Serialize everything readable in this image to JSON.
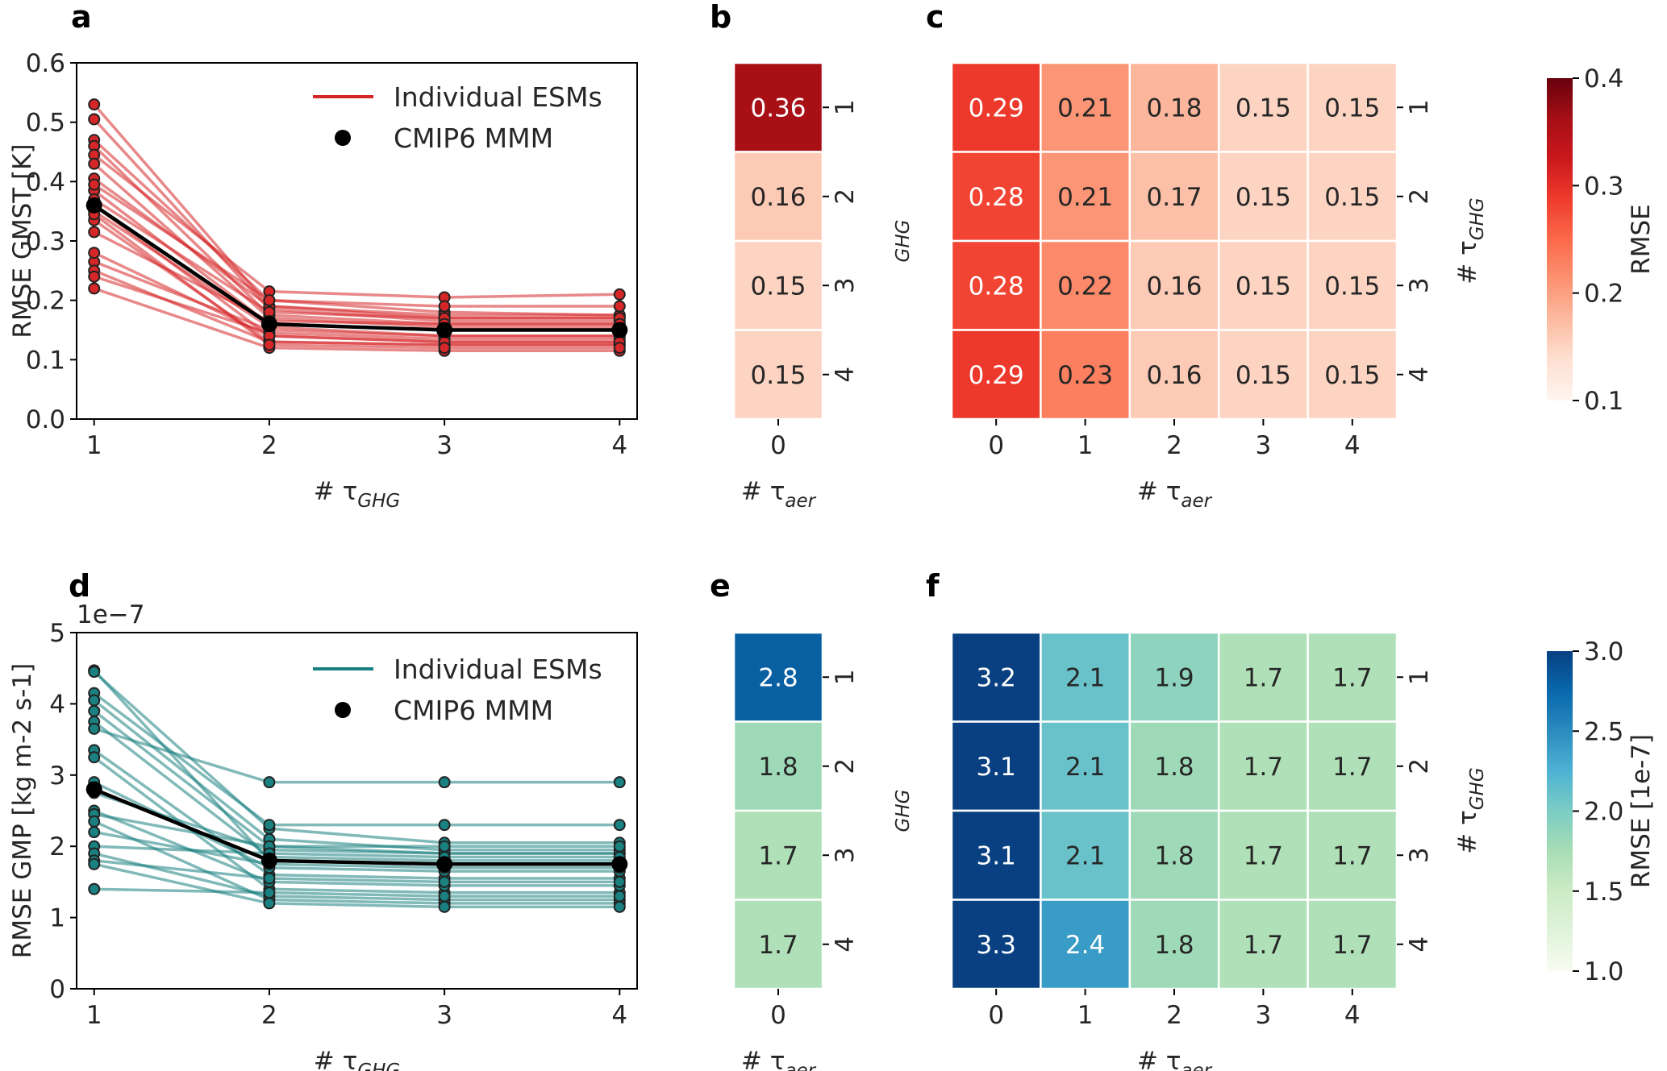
{
  "chart_data": [
    {
      "panel": "a",
      "type": "line",
      "color": "#d62728",
      "xlabel": "# τ",
      "xlabel_sub": "GHG",
      "ylabel": "RMSE GMST [K]",
      "x": [
        1,
        2,
        3,
        4
      ],
      "xticks": [
        "1",
        "2",
        "3",
        "4"
      ],
      "yticks": [
        "0.0",
        "0.1",
        "0.2",
        "0.3",
        "0.4",
        "0.5",
        "0.6"
      ],
      "ylim": [
        0,
        0.6
      ],
      "legend": {
        "individual": "Individual ESMs",
        "mmm": "CMIP6 MMM"
      },
      "mmm": [
        0.36,
        0.16,
        0.15,
        0.15
      ],
      "series": [
        [
          0.53,
          0.19,
          0.17,
          0.17
        ],
        [
          0.505,
          0.185,
          0.165,
          0.165
        ],
        [
          0.47,
          0.2,
          0.18,
          0.175
        ],
        [
          0.46,
          0.175,
          0.16,
          0.16
        ],
        [
          0.445,
          0.215,
          0.205,
          0.21
        ],
        [
          0.43,
          0.17,
          0.155,
          0.155
        ],
        [
          0.405,
          0.19,
          0.175,
          0.175
        ],
        [
          0.385,
          0.16,
          0.15,
          0.15
        ],
        [
          0.37,
          0.18,
          0.17,
          0.17
        ],
        [
          0.36,
          0.14,
          0.13,
          0.13
        ],
        [
          0.35,
          0.155,
          0.14,
          0.14
        ],
        [
          0.335,
          0.13,
          0.125,
          0.125
        ],
        [
          0.315,
          0.165,
          0.16,
          0.16
        ],
        [
          0.265,
          0.15,
          0.14,
          0.14
        ],
        [
          0.25,
          0.13,
          0.125,
          0.125
        ],
        [
          0.24,
          0.145,
          0.135,
          0.135
        ],
        [
          0.22,
          0.12,
          0.115,
          0.115
        ],
        [
          0.395,
          0.2,
          0.19,
          0.19
        ],
        [
          0.28,
          0.14,
          0.13,
          0.13
        ],
        [
          0.345,
          0.125,
          0.12,
          0.12
        ]
      ]
    },
    {
      "panel": "b",
      "type": "heatmap",
      "colorscale": "reds",
      "xlabel": "# τ",
      "xlabel_sub": "aer",
      "xticks": [
        "0"
      ],
      "yticks": [
        "1",
        "2",
        "3",
        "4"
      ],
      "values": [
        [
          "0.36"
        ],
        [
          "0.16"
        ],
        [
          "0.15"
        ],
        [
          "0.15"
        ]
      ],
      "vmin": 0.1,
      "vmax": 0.4
    },
    {
      "panel": "c",
      "type": "heatmap",
      "colorscale": "reds",
      "xlabel": "# τ",
      "xlabel_sub": "aer",
      "ylabel": "# τ",
      "ylabel_sub": "GHG",
      "xticks": [
        "0",
        "1",
        "2",
        "3",
        "4"
      ],
      "yticks": [
        "1",
        "2",
        "3",
        "4"
      ],
      "values": [
        [
          "0.29",
          "0.21",
          "0.18",
          "0.15",
          "0.15"
        ],
        [
          "0.28",
          "0.21",
          "0.17",
          "0.15",
          "0.15"
        ],
        [
          "0.28",
          "0.22",
          "0.16",
          "0.15",
          "0.15"
        ],
        [
          "0.29",
          "0.23",
          "0.16",
          "0.15",
          "0.15"
        ]
      ],
      "vmin": 0.1,
      "vmax": 0.4,
      "colorbar_label": "RMSE",
      "colorbar_ticks": [
        "0.1",
        "0.2",
        "0.3",
        "0.4"
      ]
    },
    {
      "panel": "d",
      "type": "line",
      "color": "#1a8080",
      "xlabel": "# τ",
      "xlabel_sub": "GHG",
      "ylabel": "RMSE GMP [kg m-2 s-1]",
      "offset_text": "1e−7",
      "x": [
        1,
        2,
        3,
        4
      ],
      "xticks": [
        "1",
        "2",
        "3",
        "4"
      ],
      "yticks": [
        "0",
        "1",
        "2",
        "3",
        "4",
        "5"
      ],
      "ylim": [
        0,
        5
      ],
      "legend": {
        "individual": "Individual ESMs",
        "mmm": "CMIP6 MMM"
      },
      "mmm": [
        2.8,
        1.8,
        1.75,
        1.75
      ],
      "series": [
        [
          4.47,
          1.8,
          1.75,
          1.75
        ],
        [
          4.45,
          2.25,
          2.05,
          2.05
        ],
        [
          4.15,
          2.3,
          2.3,
          2.3
        ],
        [
          4.05,
          2.1,
          1.95,
          1.95
        ],
        [
          3.9,
          2.0,
          1.9,
          1.9
        ],
        [
          3.75,
          1.85,
          1.8,
          1.8
        ],
        [
          3.65,
          2.9,
          2.9,
          2.9
        ],
        [
          3.35,
          1.6,
          1.55,
          1.55
        ],
        [
          3.25,
          1.4,
          1.35,
          1.35
        ],
        [
          2.9,
          1.7,
          1.65,
          1.65
        ],
        [
          2.75,
          1.95,
          1.9,
          1.9
        ],
        [
          2.5,
          1.5,
          1.45,
          1.45
        ],
        [
          2.45,
          2.0,
          2.0,
          2.0
        ],
        [
          2.35,
          1.25,
          1.2,
          1.2
        ],
        [
          2.0,
          1.9,
          1.85,
          1.85
        ],
        [
          1.9,
          1.3,
          1.25,
          1.25
        ],
        [
          1.8,
          1.55,
          1.5,
          1.5
        ],
        [
          1.75,
          1.2,
          1.15,
          1.15
        ],
        [
          1.4,
          1.35,
          1.3,
          1.3
        ],
        [
          2.2,
          1.75,
          1.7,
          1.7
        ]
      ]
    },
    {
      "panel": "e",
      "type": "heatmap",
      "colorscale": "ylgnbu",
      "xlabel": "# τ",
      "xlabel_sub": "aer",
      "xticks": [
        "0"
      ],
      "yticks": [
        "1",
        "2",
        "3",
        "4"
      ],
      "values": [
        [
          "2.8"
        ],
        [
          "1.8"
        ],
        [
          "1.7"
        ],
        [
          "1.7"
        ]
      ],
      "vmin": 1.0,
      "vmax": 3.0
    },
    {
      "panel": "f",
      "type": "heatmap",
      "colorscale": "ylgnbu",
      "xlabel": "# τ",
      "xlabel_sub": "aer",
      "ylabel": "# τ",
      "ylabel_sub": "GHG",
      "xticks": [
        "0",
        "1",
        "2",
        "3",
        "4"
      ],
      "yticks": [
        "1",
        "2",
        "3",
        "4"
      ],
      "values": [
        [
          "3.2",
          "2.1",
          "1.9",
          "1.7",
          "1.7"
        ],
        [
          "3.1",
          "2.1",
          "1.8",
          "1.7",
          "1.7"
        ],
        [
          "3.1",
          "2.1",
          "1.8",
          "1.7",
          "1.7"
        ],
        [
          "3.3",
          "2.4",
          "1.8",
          "1.7",
          "1.7"
        ]
      ],
      "vmin": 1.0,
      "vmax": 3.0,
      "colorbar_label": "RMSE [1e-7]",
      "colorbar_ticks": [
        "1.0",
        "1.5",
        "2.0",
        "2.5",
        "3.0"
      ]
    }
  ]
}
